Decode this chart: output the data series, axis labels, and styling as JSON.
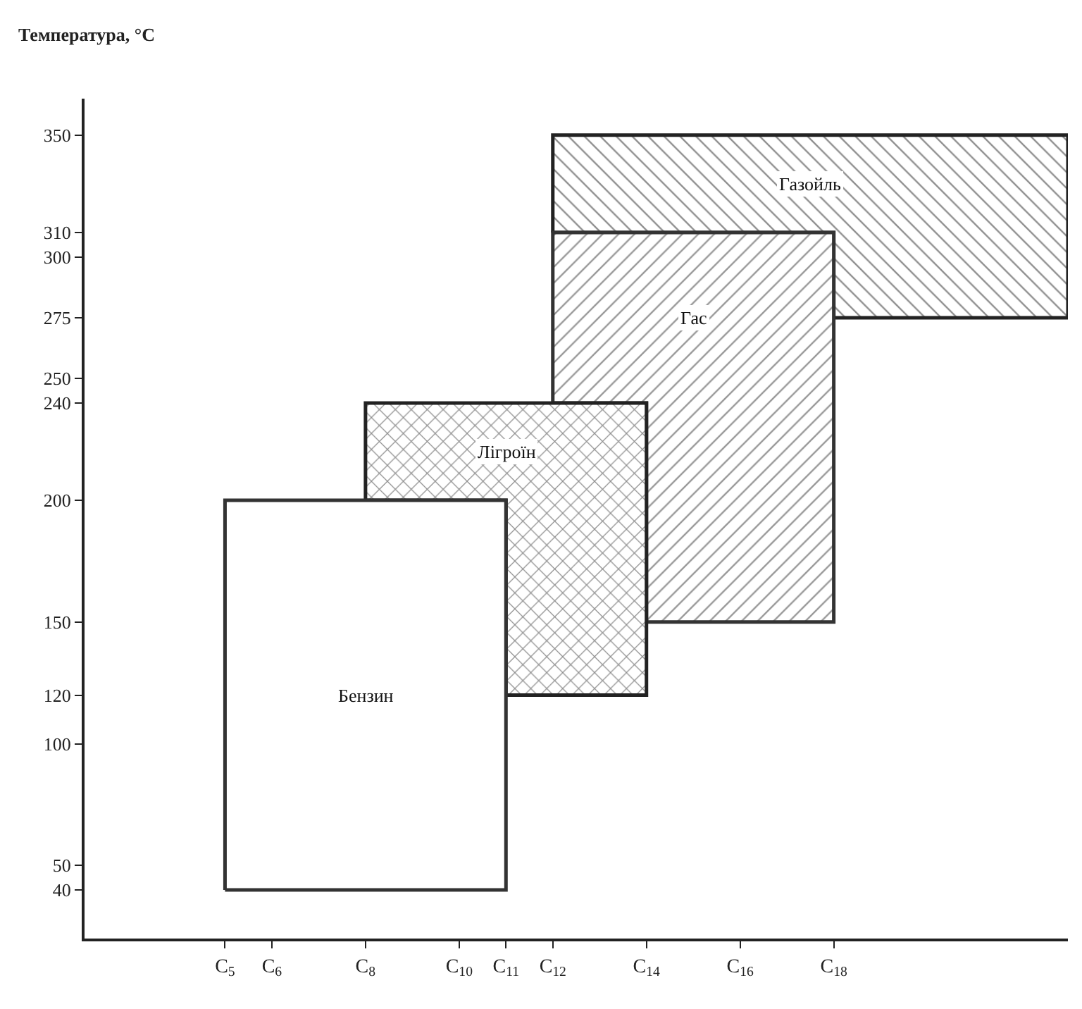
{
  "chart_data": {
    "type": "area",
    "ylabel": "Температура, °C",
    "xlim": [
      2,
      23
    ],
    "ylim": [
      20,
      365
    ],
    "xticks": [
      {
        "value": 5,
        "label": "C$_{5}$"
      },
      {
        "value": 6,
        "label": "C$_{6}$"
      },
      {
        "value": 8,
        "label": "C$_{8}$"
      },
      {
        "value": 10,
        "label": "C$_{10}$"
      },
      {
        "value": 11,
        "label": "C$_{11}$"
      },
      {
        "value": 12,
        "label": "C$_{12}$"
      },
      {
        "value": 14,
        "label": "C$_{14}$"
      },
      {
        "value": 16,
        "label": "C$_{16}$"
      },
      {
        "value": 18,
        "label": "C$_{18}$"
      }
    ],
    "yticks": [
      40,
      50,
      100,
      120,
      150,
      200,
      240,
      250,
      275,
      300,
      310,
      350
    ],
    "marker": "none",
    "line_style": "solid",
    "legend": false,
    "series": [
      {
        "name": "Бензин",
        "color": "#333333",
        "x": [
          5,
          5,
          11,
          11,
          5
        ],
        "values": [
          40,
          200,
          200,
          40,
          40
        ]
      },
      {
        "name": "Лігроїн",
        "color": "#222222",
        "x": [
          8,
          8,
          14,
          14,
          11,
          11,
          8
        ],
        "values": [
          200,
          240,
          240,
          120,
          120,
          200,
          200
        ]
      },
      {
        "name": "Гас",
        "color": "#333333",
        "x": [
          12,
          12,
          18,
          18,
          14,
          14,
          12
        ],
        "values": [
          240,
          310,
          310,
          150,
          150,
          240,
          240
        ]
      },
      {
        "name": "Газойль",
        "color": "#222222",
        "x": [
          12,
          12,
          23,
          23,
          18,
          18,
          12
        ],
        "values": [
          310,
          350,
          350,
          275,
          275,
          310,
          310
        ]
      }
    ]
  }
}
